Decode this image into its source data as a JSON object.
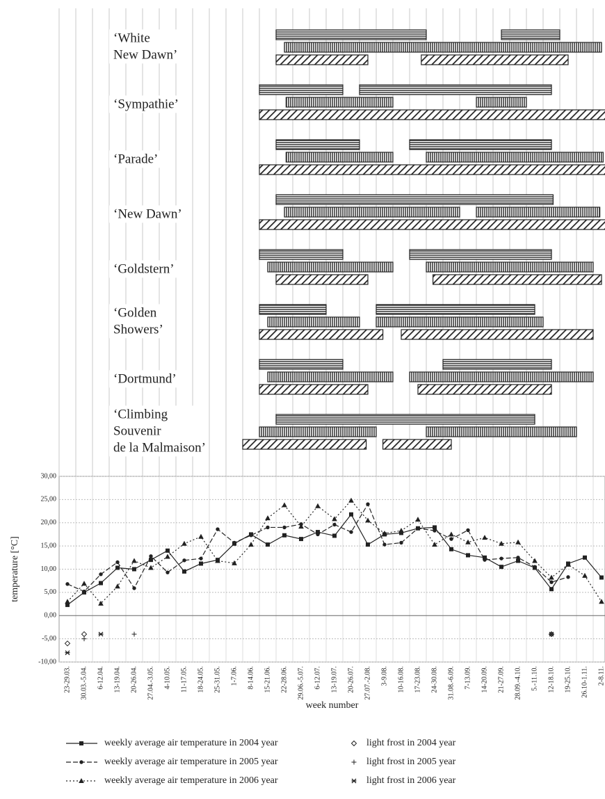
{
  "chart_data": [
    {
      "type": "gantt",
      "track_patterns": [
        "horizontal",
        "vertical",
        "diagonal"
      ],
      "rows": [
        {
          "label": [
            "‘White",
            "New Dawn’"
          ],
          "tracks": [
            [
              [
                13,
                22
              ],
              [
                26.5,
                30
              ]
            ],
            [
              [
                13.5,
                32.5
              ]
            ],
            [
              [
                13,
                18.5
              ],
              [
                21.7,
                30.5
              ]
            ]
          ]
        },
        {
          "label": [
            "‘Sympathie’"
          ],
          "tracks": [
            [
              [
                12,
                17
              ],
              [
                18,
                29.5
              ]
            ],
            [
              [
                13.6,
                20
              ],
              [
                25,
                28
              ]
            ],
            [
              [
                12,
                33
              ]
            ]
          ]
        },
        {
          "label": [
            "‘Parade’"
          ],
          "tracks": [
            [
              [
                13,
                18
              ],
              [
                21,
                29.5
              ]
            ],
            [
              [
                13.6,
                20
              ],
              [
                22,
                32.6
              ]
            ],
            [
              [
                12,
                33
              ]
            ]
          ]
        },
        {
          "label": [
            "‘New Dawn’"
          ],
          "tracks": [
            [
              [
                13,
                29.6
              ]
            ],
            [
              [
                13.5,
                24
              ],
              [
                25,
                32.4
              ]
            ],
            [
              [
                12,
                33
              ]
            ]
          ]
        },
        {
          "label": [
            "‘Goldstern’"
          ],
          "tracks": [
            [
              [
                12,
                17
              ],
              [
                21,
                29.5
              ]
            ],
            [
              [
                12.5,
                20
              ],
              [
                22,
                32
              ]
            ],
            [
              [
                13,
                18.5
              ],
              [
                22.4,
                32.5
              ]
            ]
          ]
        },
        {
          "label": [
            "‘Golden",
            " Showers’"
          ],
          "tracks": [
            [
              [
                12,
                16
              ],
              [
                19,
                28.5
              ]
            ],
            [
              [
                12.5,
                18
              ],
              [
                19,
                29
              ]
            ],
            [
              [
                12,
                19.4
              ],
              [
                20.5,
                32
              ]
            ]
          ]
        },
        {
          "label": [
            "‘Dortmund’"
          ],
          "tracks": [
            [
              [
                12,
                17
              ],
              [
                23,
                29.5
              ]
            ],
            [
              [
                12.5,
                20
              ],
              [
                21,
                32
              ]
            ],
            [
              [
                12,
                18.5
              ],
              [
                21.5,
                29.5
              ]
            ]
          ]
        },
        {
          "label": [
            "‘Climbing",
            "Souvenir",
            "de la Malmaison’"
          ],
          "tracks": [
            [
              [
                13,
                28.5
              ]
            ],
            [
              [
                12,
                19
              ],
              [
                22,
                31
              ]
            ],
            [
              [
                11,
                18.4
              ],
              [
                19.4,
                23.5
              ]
            ]
          ]
        }
      ]
    },
    {
      "type": "line",
      "y_label": "temperature [°C]",
      "x_label": "week number",
      "categories": [
        "23-29.03.",
        "30.03.-5.04.",
        "6-12.04.",
        "13-19.04.",
        "20-26.04.",
        "27.04.-3.05.",
        "4-10.05.",
        "11-17.05.",
        "18-24.05.",
        "25-31.05.",
        "1-7.06.",
        "8-14.06.",
        "15-21.06.",
        "22-28.06.",
        "29.06.-5.07.",
        "6-12.07.",
        "13-19.07.",
        "20-26.07.",
        "27.07.-2.08.",
        "3-9.08.",
        "10-16.08.",
        "17-23.08.",
        "24-30.08.",
        "31.08.-6.09.",
        "7-13.09.",
        "14-20.09.",
        "21-27.09.",
        "28.09.-4.10.",
        "5.-11.10.",
        "12-18.10.",
        "19-25.10.",
        "26.10-1.11.",
        "2-8.11."
      ],
      "ylim": [
        -10,
        30
      ],
      "yticks": [
        {
          "value": -10,
          "label": "-10,00"
        },
        {
          "value": -5,
          "label": "-5,00"
        },
        {
          "value": 0,
          "label": "0,00"
        },
        {
          "value": 5,
          "label": "5,00"
        },
        {
          "value": 10,
          "label": "10,00"
        },
        {
          "value": 15,
          "label": "15,00"
        },
        {
          "value": 20,
          "label": "20,00"
        },
        {
          "value": 25,
          "label": "25,00"
        },
        {
          "value": 30,
          "label": "30,00"
        }
      ],
      "grid": true,
      "series": [
        {
          "name": "weekly average air temperature in 2004 year",
          "color": "#222222",
          "line": "solid",
          "marker": "square",
          "values": [
            2.3,
            5.0,
            7.0,
            10.3,
            10.0,
            12.0,
            14.0,
            9.5,
            11.2,
            12.0,
            15.5,
            17.5,
            15.3,
            17.3,
            16.5,
            18.0,
            17.2,
            21.8,
            15.3,
            17.5,
            17.8,
            18.8,
            19.0,
            14.3,
            13.0,
            12.5,
            10.5,
            11.8,
            10.3,
            5.7,
            11.2,
            12.5,
            8.2
          ]
        },
        {
          "name": "weekly average air temperature in 2005 year",
          "color": "#222222",
          "line": "dashed",
          "marker": "circle",
          "values": [
            6.8,
            5.2,
            8.9,
            11.5,
            5.9,
            12.8,
            9.3,
            11.9,
            12.3,
            18.6,
            15.7,
            17.3,
            19.0,
            19.0,
            19.7,
            17.5,
            19.6,
            18.0,
            24.0,
            15.3,
            15.7,
            18.8,
            18.3,
            16.5,
            18.4,
            12.0,
            12.3,
            12.5,
            10.5,
            7.2,
            8.3,
            null,
            null
          ]
        },
        {
          "name": "weekly average air temperature in 2006 year",
          "color": "#222222",
          "line": "dotted",
          "marker": "triangle",
          "values": [
            3.0,
            6.9,
            2.6,
            6.3,
            11.8,
            10.3,
            12.7,
            15.5,
            17.0,
            11.8,
            11.3,
            15.3,
            21.0,
            23.8,
            19.2,
            23.6,
            20.8,
            24.8,
            20.5,
            17.7,
            18.3,
            20.7,
            15.3,
            17.5,
            15.8,
            16.8,
            15.5,
            15.8,
            11.8,
            8.2,
            11.0,
            8.6,
            3.0
          ]
        },
        {
          "name": "light frost in 2004 year",
          "color": "#222222",
          "line": "none",
          "marker": "diamond",
          "values": [
            -6,
            -4,
            null,
            null,
            null,
            null,
            null,
            null,
            null,
            null,
            null,
            null,
            null,
            null,
            null,
            null,
            null,
            null,
            null,
            null,
            null,
            null,
            null,
            null,
            null,
            null,
            null,
            null,
            null,
            -4,
            null,
            null,
            null
          ]
        },
        {
          "name": "light frost in 2005 year",
          "color": "#222222",
          "line": "none",
          "marker": "plus",
          "values": [
            null,
            -5,
            null,
            null,
            -4,
            null,
            null,
            null,
            null,
            null,
            null,
            null,
            null,
            null,
            null,
            null,
            null,
            null,
            null,
            null,
            null,
            null,
            null,
            null,
            null,
            null,
            null,
            null,
            null,
            -4,
            null,
            null,
            null
          ]
        },
        {
          "name": "light frost in 2006 year",
          "color": "#222222",
          "line": "none",
          "marker": "asterisk",
          "values": [
            -8,
            null,
            -4,
            null,
            null,
            null,
            null,
            null,
            null,
            null,
            null,
            null,
            null,
            null,
            null,
            null,
            null,
            null,
            null,
            null,
            null,
            null,
            null,
            null,
            null,
            null,
            null,
            null,
            null,
            -4,
            null,
            null,
            null
          ]
        }
      ]
    }
  ]
}
